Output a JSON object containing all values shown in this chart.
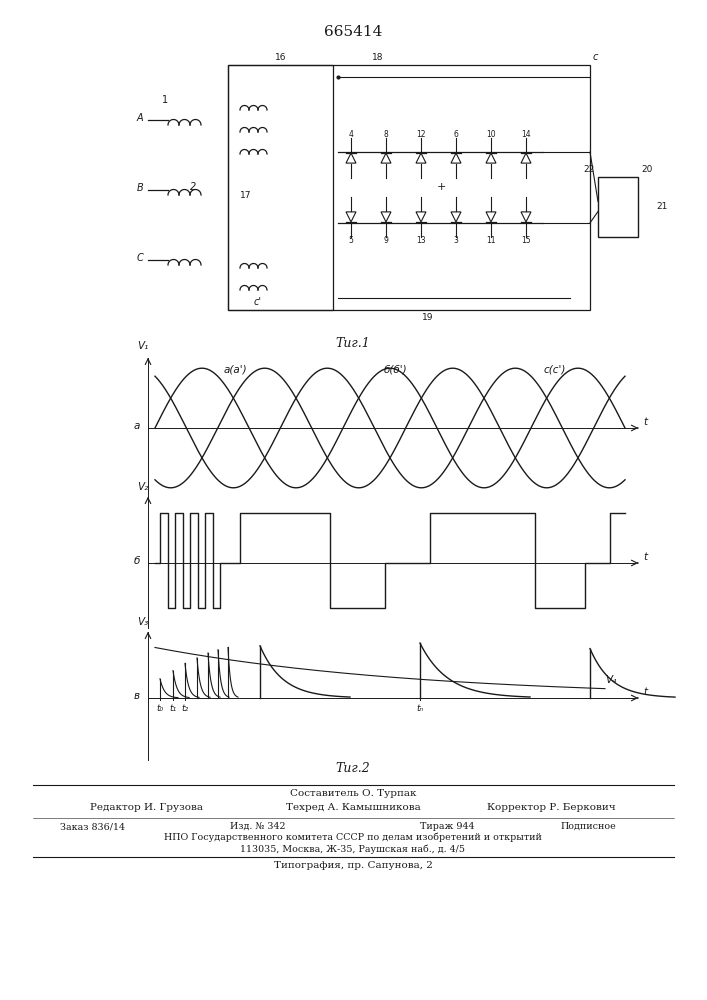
{
  "patent_number": "665414",
  "fig1_caption": "Τиг.1",
  "fig2_caption": "Τиг.2",
  "text_color": "#1a1a1a",
  "line_color": "#1a1a1a",
  "label_V1": "V₁",
  "label_V2": "V₂",
  "label_V3": "V₃",
  "label_Va": "V₄",
  "label_t": "t",
  "label_a_a": "a(a')",
  "label_b_b": "б(б')",
  "label_c_c": "c(c')",
  "label_t0": "t₀",
  "label_t1": "t₁",
  "label_t2": "t₂",
  "label_tn": "tₙ",
  "panel_a_label": "а",
  "panel_b_label": "б",
  "panel_v_label": "в",
  "footer_compiler": "Составитель О. Турпак",
  "footer_editor": "Редактор И. Грузова",
  "footer_techred": "Техред А. Камышникова",
  "footer_corrector": "Корректор Р. Беркович",
  "footer_zakaz": "Заказ 836/14",
  "footer_izd": "Изд. № 342",
  "footer_tirazh": "Тираж 944",
  "footer_podpisnoe": "Подписное",
  "footer_npo": "НПО Государственного комитета СССР по делам изобретений и открытий",
  "footer_address": "113035, Москва, Ж-35, Раушская наб., д. 4/5",
  "footer_tipografia": "Типография, пр. Сапунова, 2"
}
